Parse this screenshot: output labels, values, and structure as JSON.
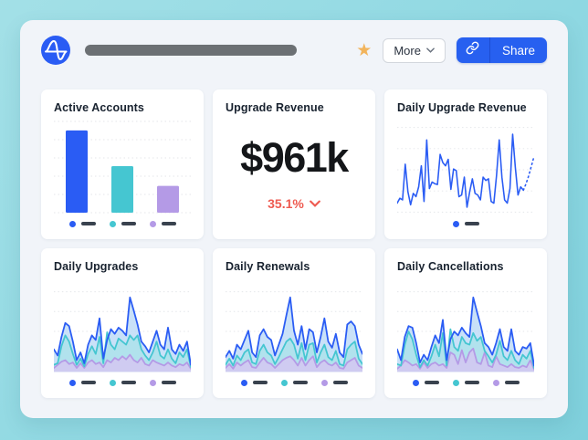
{
  "header": {
    "logo": "amplitude-logo",
    "star_icon": "favorite-star",
    "more_button": {
      "label": "More"
    },
    "share_button": {
      "label": "Share",
      "icon": "link"
    }
  },
  "cards": {
    "active_accounts": {
      "title": "Active Accounts"
    },
    "upgrade_revenue": {
      "title": "Upgrade Revenue",
      "value": "$961k",
      "delta": "35.1%",
      "delta_direction": "down"
    },
    "daily_upgrade_revenue": {
      "title": "Daily Upgrade Revenue"
    },
    "daily_upgrades": {
      "title": "Daily Upgrades"
    },
    "daily_renewals": {
      "title": "Daily Renewals"
    },
    "daily_cancellations": {
      "title": "Daily Cancellations"
    }
  },
  "colors": {
    "accent_blue": "#2a5cf4",
    "teal": "#45c6d1",
    "purple": "#b49ae6",
    "delta_red": "#ee5a50",
    "legend_dash": "#39424e",
    "grid_line": "#e4e6ea"
  },
  "chart_data": [
    {
      "id": "active-accounts",
      "type": "bar",
      "title": "Active Accounts",
      "categories": [
        "series-1",
        "series-2",
        "series-3"
      ],
      "values": [
        92,
        52,
        30
      ],
      "ylim": [
        0,
        100
      ],
      "grid": true,
      "colors": [
        "#2a5cf4",
        "#45c6d1",
        "#b49ae6"
      ],
      "legend_colors": [
        "#2a5cf4",
        "#45c6d1",
        "#b49ae6"
      ]
    },
    {
      "id": "daily-upgrade-revenue",
      "type": "line",
      "title": "Daily Upgrade Revenue",
      "values": [
        10,
        16,
        14,
        58,
        24,
        8,
        22,
        18,
        30,
        56,
        12,
        88,
        28,
        36,
        34,
        33,
        70,
        60,
        56,
        64,
        27,
        52,
        50,
        18,
        20,
        42,
        5,
        24,
        40,
        22,
        20,
        14,
        42,
        38,
        40,
        12,
        10,
        44,
        88,
        42,
        14,
        10,
        28,
        95,
        54,
        20,
        30,
        26
      ],
      "projection": [
        34,
        44,
        56,
        68
      ],
      "ylim": [
        0,
        100
      ],
      "grid": true,
      "color": "#2a5cf4",
      "legend_colors": [
        "#2a5cf4"
      ]
    },
    {
      "id": "daily-upgrades",
      "type": "area",
      "title": "Daily Upgrades",
      "ylim": [
        0,
        100
      ],
      "grid": true,
      "legend_colors": [
        "#2a5cf4",
        "#45c6d1",
        "#b49ae6"
      ],
      "series": [
        {
          "name": "series-1",
          "color": "#2a5cf4",
          "fill": "#bcd9f6",
          "values": [
            28,
            20,
            44,
            62,
            58,
            38,
            14,
            24,
            10,
            34,
            46,
            40,
            68,
            16,
            40,
            54,
            48,
            56,
            52,
            46,
            95,
            78,
            60,
            38,
            32,
            24,
            38,
            52,
            34,
            28,
            56,
            28,
            22,
            34,
            26,
            38,
            8
          ]
        },
        {
          "name": "series-2",
          "color": "#45c6d1",
          "fill": "#abe2ea",
          "values": [
            8,
            10,
            32,
            46,
            38,
            22,
            8,
            16,
            6,
            22,
            32,
            22,
            44,
            10,
            50,
            34,
            28,
            42,
            38,
            34,
            46,
            40,
            46,
            28,
            20,
            14,
            24,
            38,
            20,
            16,
            28,
            16,
            10,
            24,
            18,
            28,
            5
          ]
        },
        {
          "name": "series-3",
          "color": "#b49ae6",
          "fill": "#d7c6f1",
          "values": [
            4,
            8,
            12,
            14,
            9,
            11,
            4,
            10,
            4,
            11,
            14,
            9,
            11,
            5,
            14,
            11,
            17,
            14,
            19,
            15,
            21,
            14,
            11,
            17,
            9,
            7,
            14,
            11,
            9,
            7,
            11,
            7,
            5,
            9,
            7,
            11,
            3
          ]
        }
      ]
    },
    {
      "id": "daily-renewals",
      "type": "area",
      "title": "Daily Renewals",
      "ylim": [
        0,
        100
      ],
      "grid": true,
      "legend_colors": [
        "#2a5cf4",
        "#45c6d1",
        "#b49ae6"
      ],
      "series": [
        {
          "name": "series-1",
          "color": "#2a5cf4",
          "fill": "#bcd9f6",
          "values": [
            18,
            26,
            16,
            34,
            28,
            40,
            52,
            24,
            18,
            46,
            54,
            44,
            40,
            20,
            34,
            48,
            72,
            95,
            52,
            34,
            58,
            28,
            54,
            50,
            24,
            44,
            68,
            38,
            30,
            48,
            24,
            18,
            60,
            64,
            58,
            34,
            22
          ]
        },
        {
          "name": "series-2",
          "color": "#45c6d1",
          "fill": "#abe2ea",
          "values": [
            8,
            16,
            7,
            20,
            14,
            24,
            28,
            11,
            9,
            26,
            34,
            24,
            20,
            9,
            18,
            28,
            38,
            42,
            34,
            16,
            36,
            14,
            34,
            36,
            11,
            24,
            34,
            18,
            14,
            26,
            9,
            7,
            28,
            34,
            38,
            16,
            9
          ]
        },
        {
          "name": "series-3",
          "color": "#b49ae6",
          "fill": "#d7c6f1",
          "values": [
            4,
            9,
            3,
            11,
            7,
            11,
            14,
            5,
            4,
            11,
            17,
            11,
            9,
            4,
            9,
            14,
            17,
            19,
            14,
            7,
            17,
            7,
            14,
            19,
            5,
            11,
            14,
            9,
            7,
            11,
            4,
            3,
            11,
            14,
            17,
            7,
            4
          ]
        }
      ]
    },
    {
      "id": "daily-cancellations",
      "type": "area",
      "title": "Daily Cancellations",
      "ylim": [
        0,
        100
      ],
      "grid": true,
      "legend_colors": [
        "#2a5cf4",
        "#45c6d1",
        "#b49ae6"
      ],
      "series": [
        {
          "name": "series-1",
          "color": "#2a5cf4",
          "fill": "#bcd9f6",
          "values": [
            28,
            14,
            44,
            58,
            56,
            36,
            11,
            21,
            14,
            31,
            46,
            36,
            66,
            14,
            41,
            51,
            46,
            56,
            49,
            44,
            95,
            76,
            58,
            36,
            31,
            21,
            36,
            54,
            31,
            26,
            54,
            26,
            21,
            31,
            29,
            36,
            7
          ]
        },
        {
          "name": "series-2",
          "color": "#45c6d1",
          "fill": "#abe2ea",
          "values": [
            9,
            7,
            34,
            51,
            41,
            21,
            5,
            14,
            7,
            19,
            34,
            19,
            49,
            7,
            54,
            31,
            26,
            44,
            36,
            34,
            49,
            39,
            44,
            26,
            19,
            11,
            21,
            39,
            19,
            14,
            26,
            14,
            9,
            21,
            16,
            26,
            4
          ]
        },
        {
          "name": "series-3",
          "color": "#b49ae6",
          "fill": "#d7c6f1",
          "values": [
            3,
            7,
            14,
            11,
            7,
            9,
            3,
            11,
            4,
            9,
            11,
            7,
            9,
            4,
            24,
            21,
            9,
            27,
            11,
            24,
            29,
            11,
            9,
            24,
            7,
            5,
            19,
            9,
            7,
            5,
            9,
            5,
            4,
            7,
            5,
            14,
            2
          ]
        }
      ]
    }
  ]
}
